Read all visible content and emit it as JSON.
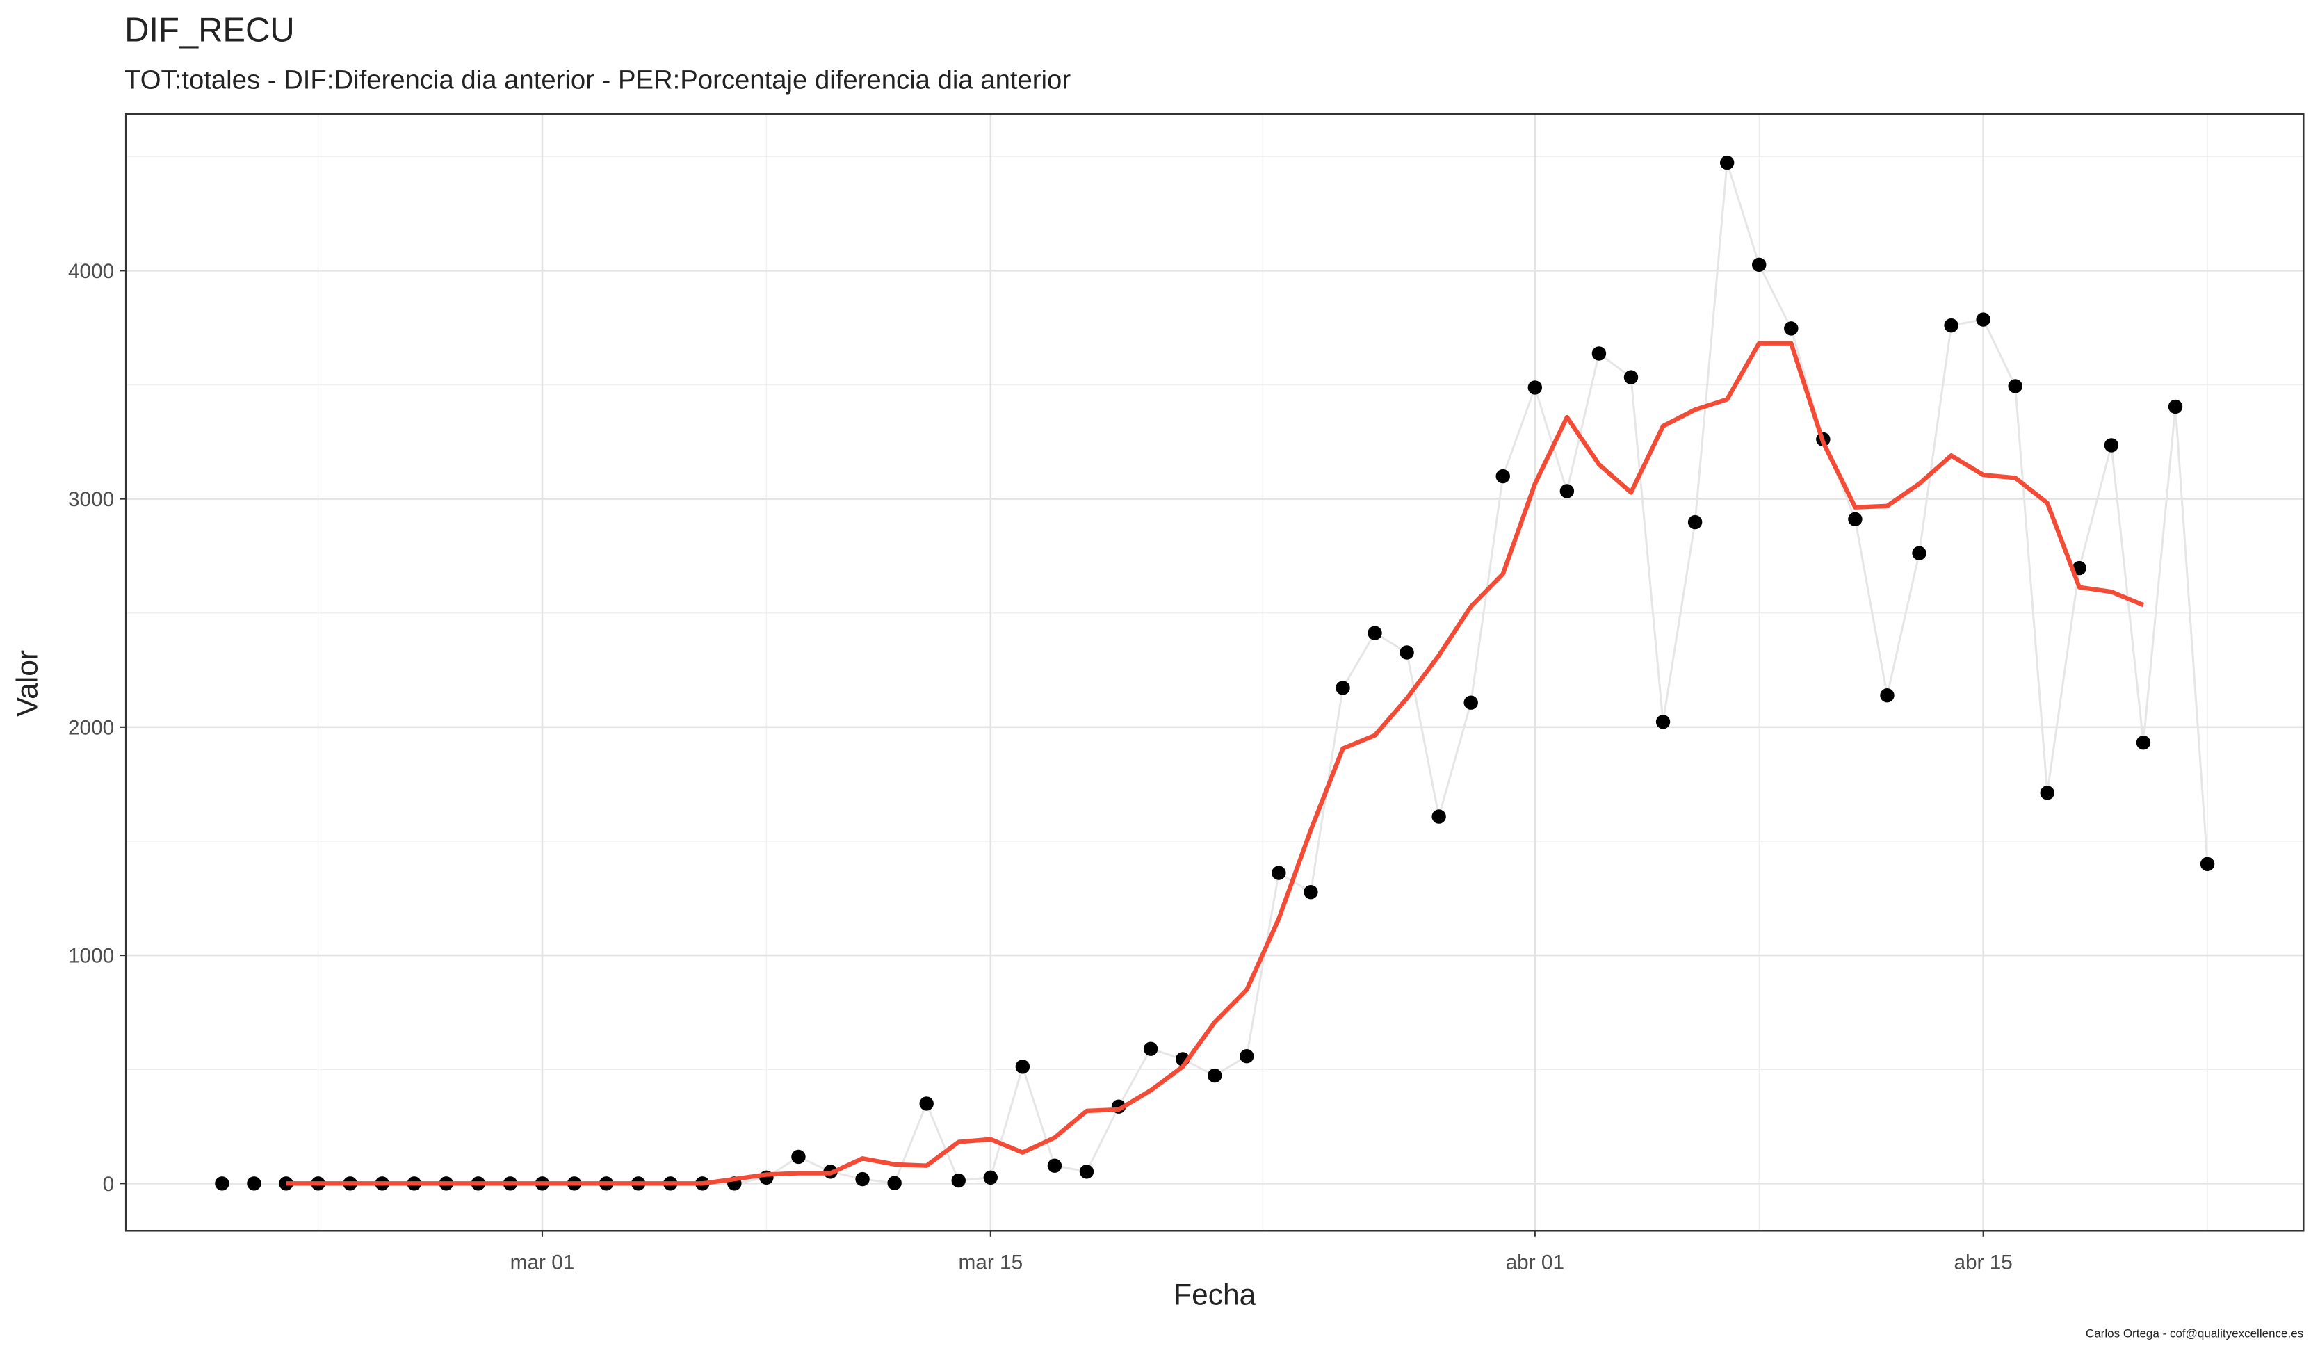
{
  "chart_data": {
    "type": "line_points",
    "title": "DIF_RECU",
    "subtitle": "TOT:totales - DIF:Diferencia dia anterior - PER:Porcentaje diferencia dia anterior",
    "x_label": "Fecha",
    "y_label": "Valor",
    "caption": "Carlos Ortega - cof@qualityexcellence.es",
    "x": [
      "02-20",
      "02-21",
      "02-22",
      "02-23",
      "02-24",
      "02-25",
      "02-26",
      "02-27",
      "02-28",
      "02-29",
      "03-01",
      "03-02",
      "03-03",
      "03-04",
      "03-05",
      "03-06",
      "03-07",
      "03-08",
      "03-09",
      "03-10",
      "03-11",
      "03-12",
      "03-13",
      "03-14",
      "03-15",
      "03-16",
      "03-17",
      "03-18",
      "03-19",
      "03-20",
      "03-21",
      "03-22",
      "03-23",
      "03-24",
      "03-25",
      "03-26",
      "03-27",
      "03-28",
      "03-29",
      "03-30",
      "03-31",
      "04-01",
      "04-02",
      "04-03",
      "04-04",
      "04-05",
      "04-06",
      "04-07",
      "04-08",
      "04-09",
      "04-10",
      "04-11",
      "04-12",
      "04-13",
      "04-14",
      "04-15",
      "04-16",
      "04-17",
      "04-18",
      "04-19",
      "04-20",
      "04-21",
      "04-22"
    ],
    "series": [
      {
        "color": "#000000",
        "line_color": "#e6e6e6",
        "values": [
          0,
          0,
          0,
          0,
          0,
          0,
          0,
          0,
          0,
          0,
          0,
          0,
          0,
          0,
          0,
          0,
          0,
          26,
          117,
          52,
          19,
          2,
          350,
          13,
          26,
          512,
          78,
          52,
          337,
          590,
          545,
          473,
          558,
          1361,
          1277,
          2172,
          2412,
          2327,
          1608,
          2107,
          3099,
          3488,
          3034,
          3637,
          3533,
          2023,
          2898,
          4473,
          4026,
          3747,
          3261,
          2911,
          2139,
          2762,
          3760,
          3786,
          3494,
          1712,
          2697,
          3235,
          1932,
          3404,
          1400
        ]
      },
      {
        "color": "#f44b36",
        "values": [
          null,
          null,
          0,
          0,
          0,
          0,
          0,
          0,
          0,
          0,
          0,
          0,
          0,
          0,
          0,
          0,
          19,
          39,
          45,
          45,
          110,
          84,
          78,
          182,
          194,
          136,
          201,
          318,
          324,
          408,
          512,
          707,
          849,
          1160,
          1549,
          1906,
          1964,
          2126,
          2314,
          2528,
          2671,
          3066,
          3358,
          3151,
          3028,
          3319,
          3391,
          3436,
          3682,
          3682,
          3248,
          2963,
          2969,
          3066,
          3190,
          3105,
          3092,
          2982,
          2613,
          2593,
          2535,
          null,
          null
        ]
      }
    ],
    "xlim": [
      "02-17",
      "04-25"
    ],
    "xticks": [
      {
        "value": "03-01",
        "label": "mar 01"
      },
      {
        "value": "03-15",
        "label": "mar 15"
      },
      {
        "value": "04-01",
        "label": "abr 01"
      },
      {
        "value": "04-15",
        "label": "abr 15"
      }
    ],
    "ylim": [
      -207,
      4687
    ],
    "yticks": [
      0,
      1000,
      2000,
      3000,
      4000
    ],
    "grid": true
  }
}
